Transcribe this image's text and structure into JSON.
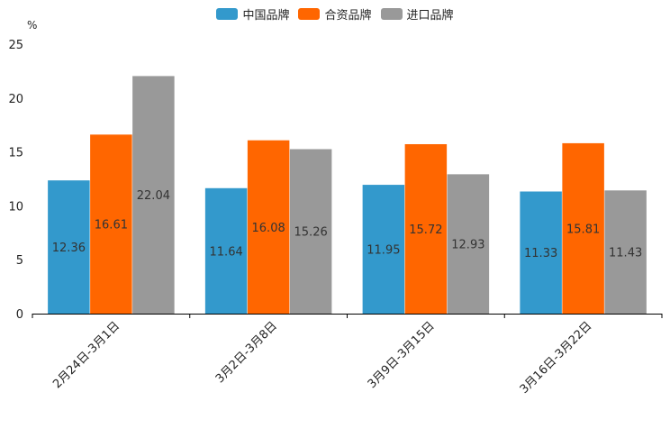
{
  "chart_data": {
    "type": "bar",
    "unit": "%",
    "categories": [
      "2月24日-3月1日",
      "3月2日-3月8日",
      "3月9日-3月15日",
      "3月16日-3月22日"
    ],
    "series": [
      {
        "name": "中国品牌",
        "color": "#3399cc",
        "values": [
          12.36,
          11.64,
          11.95,
          11.33
        ]
      },
      {
        "name": "合资品牌",
        "color": "#ff6600",
        "values": [
          16.61,
          16.08,
          15.72,
          15.81
        ]
      },
      {
        "name": "进口品牌",
        "color": "#999999",
        "values": [
          22.04,
          15.26,
          12.93,
          11.43
        ]
      }
    ],
    "ylim": [
      0,
      25
    ],
    "yticks": [
      "0",
      "5",
      "10",
      "15",
      "20",
      "25"
    ],
    "legend_position": "top-center"
  }
}
